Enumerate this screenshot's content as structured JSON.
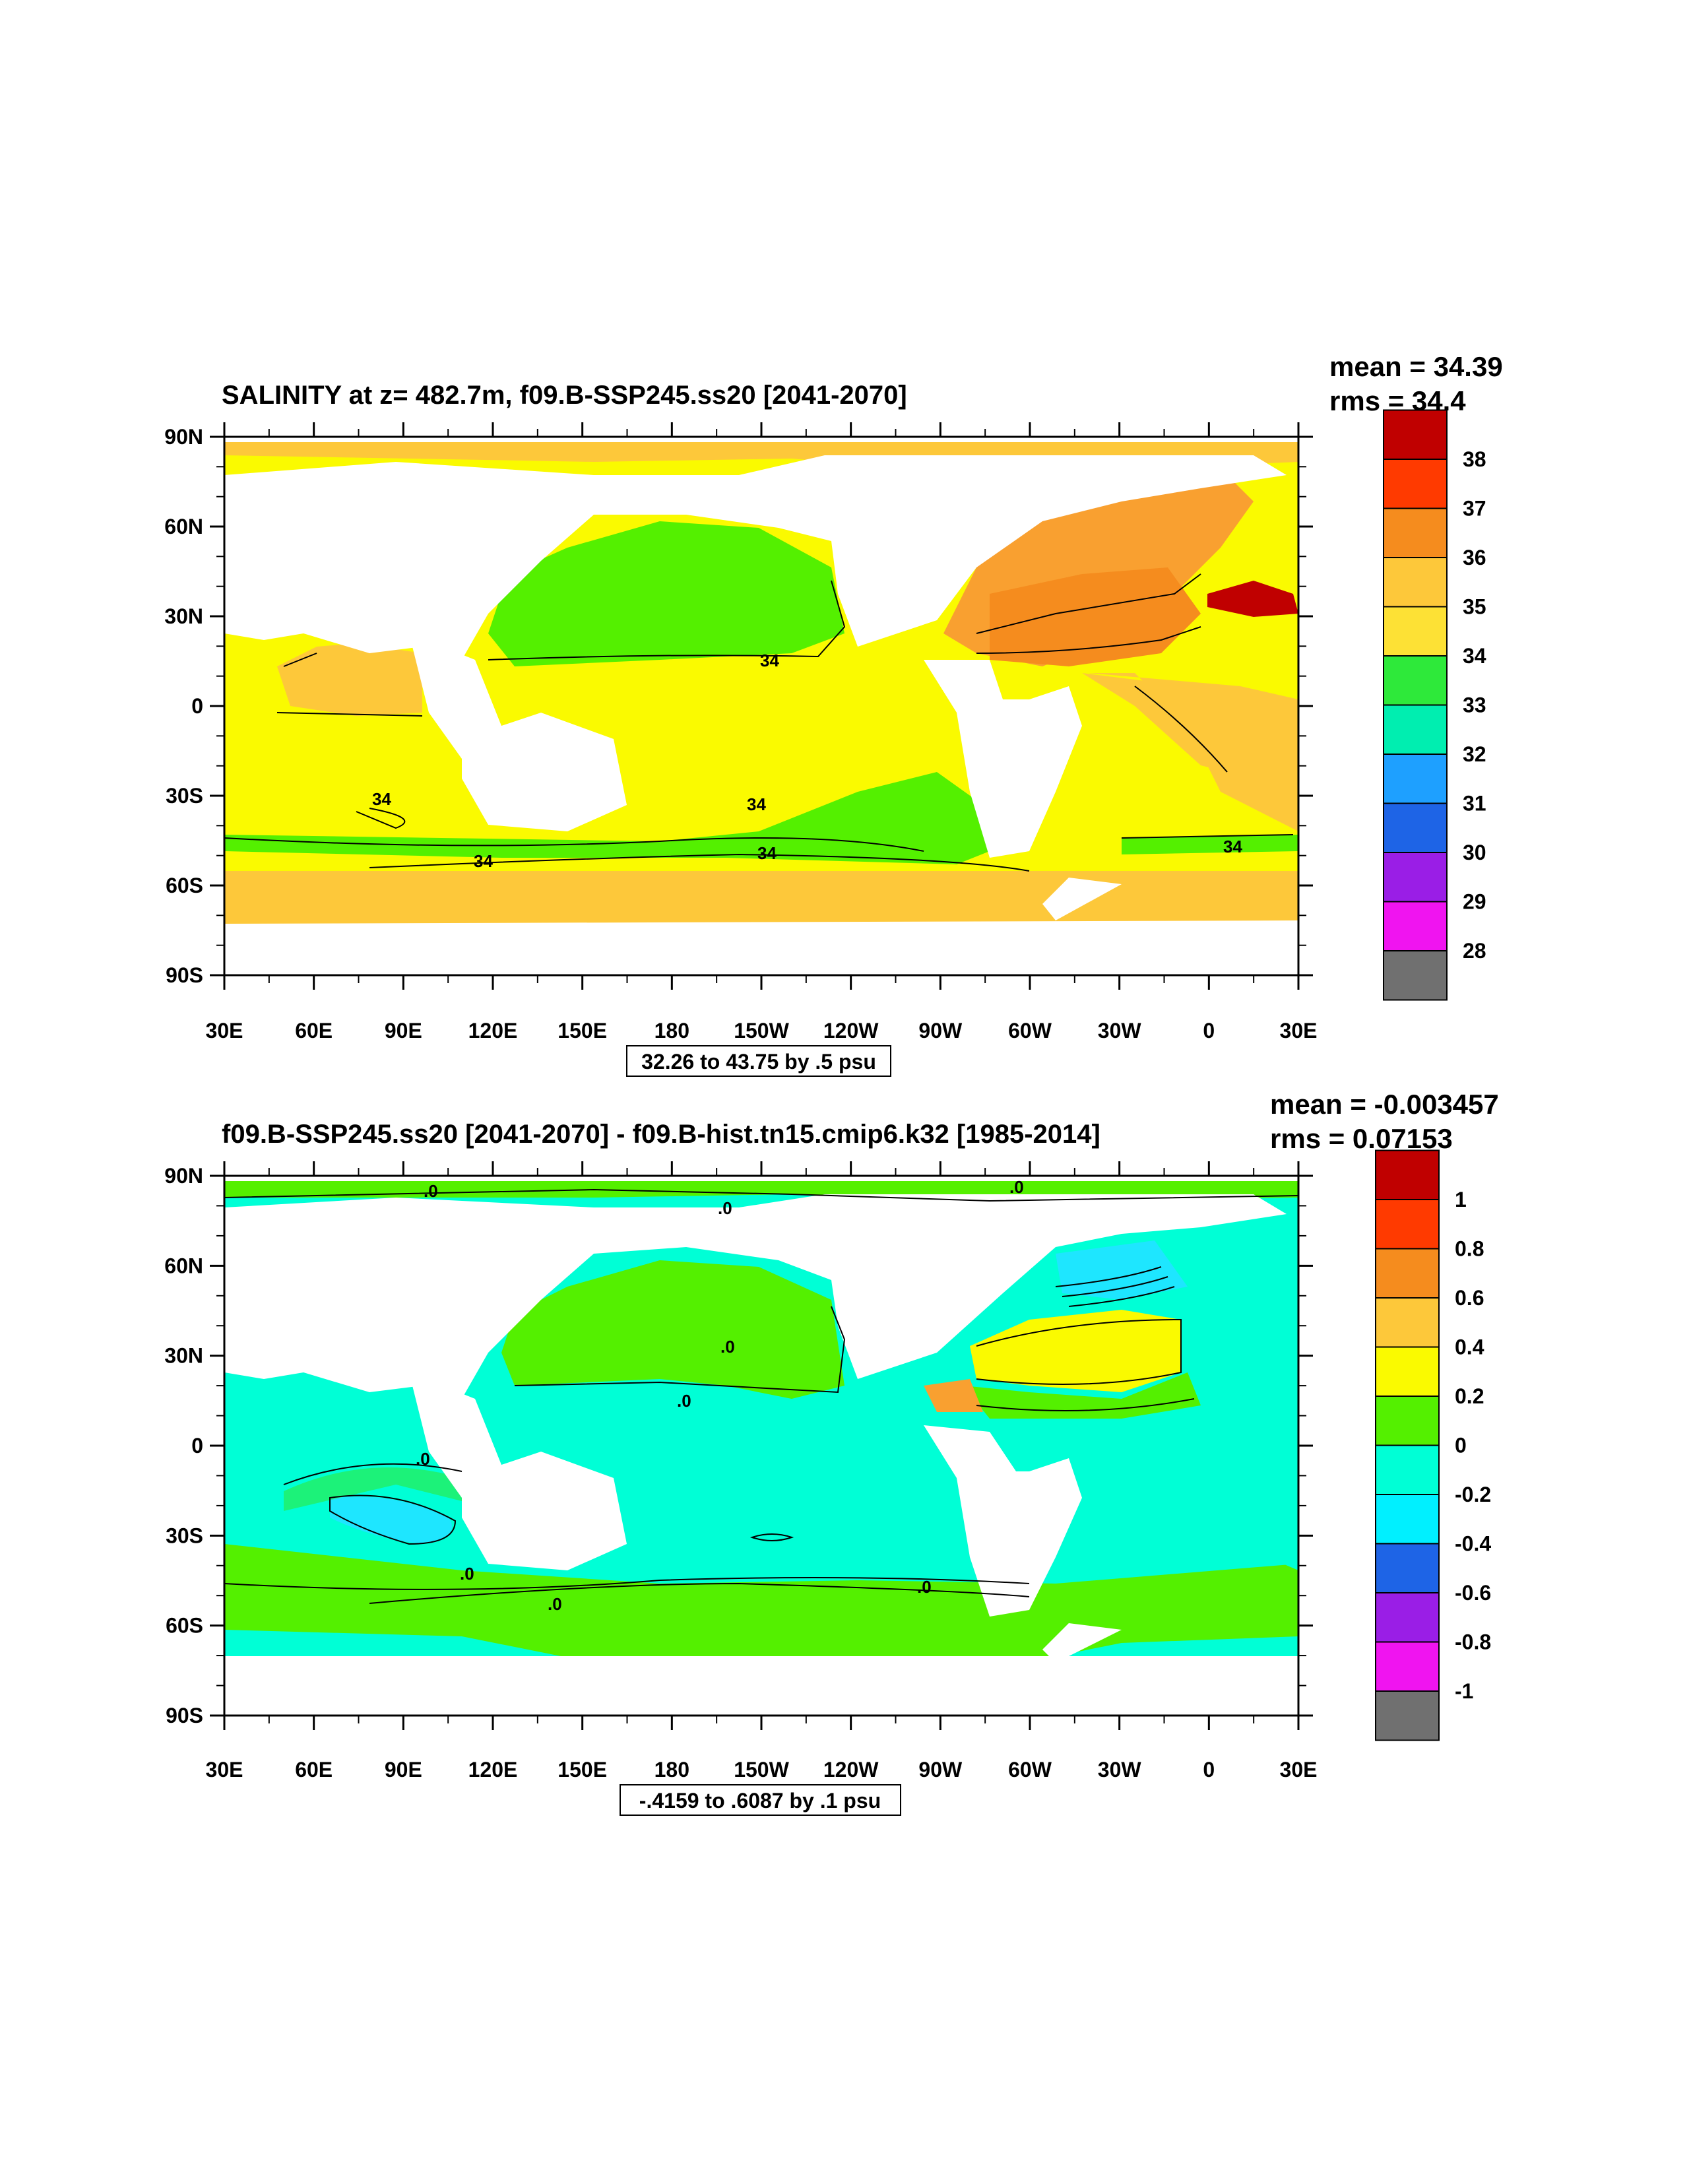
{
  "panels": [
    {
      "title": "SALINITY at z= 482.7m, f09.B-SSP245.ss20 [2041-2070]",
      "mean_text": "mean = 34.39",
      "rms_text": "rms = 34.4",
      "contour_info": "32.26 to 43.75 by .5 psu",
      "colorbar_labels": [
        "38",
        "37",
        "36",
        "35",
        "34",
        "33",
        "32",
        "31",
        "30",
        "29",
        "28"
      ],
      "colorbar_colors": [
        "#c00000",
        "#e60000",
        "#ff3a00",
        "#f58c1e",
        "#f9a030",
        "#fdc83a",
        "#fde135",
        "#fafa00",
        "#2ee93a",
        "#00eeb0",
        "#1ee6ff",
        "#1ea0ff",
        "#1e64e6",
        "#0000ff",
        "#9a1ee6",
        "#f014f0",
        "#cccccc",
        "#707070"
      ],
      "contour_labels": [
        "34",
        "34",
        "34",
        "34",
        "34",
        "34"
      ]
    },
    {
      "title": "f09.B-SSP245.ss20 [2041-2070] - f09.B-hist.tn15.cmip6.k32 [1985-2014]",
      "mean_text": "mean = -0.003457",
      "rms_text": "rms = 0.07153",
      "contour_info": "-.4159 to .6087 by .1 psu",
      "colorbar_labels": [
        "1",
        "0.8",
        "0.6",
        "0.4",
        "0.2",
        "0",
        "-0.2",
        "-0.4",
        "-0.6",
        "-0.8",
        "-1"
      ],
      "colorbar_colors": [
        "#c00000",
        "#e60000",
        "#ff3a00",
        "#f58c1e",
        "#f9a030",
        "#fdc83a",
        "#fde135",
        "#fafa00",
        "#54f000",
        "#2ee93a",
        "#00ffd6",
        "#00f0ff",
        "#1ee6ff",
        "#1e64e6",
        "#0000ff",
        "#9a1ee6",
        "#f014f0",
        "#cccccc",
        "#707070"
      ],
      "contour_labels": [
        ".0",
        ".0",
        ".0",
        ".0",
        ".0",
        ".0",
        ".0",
        ".0",
        ".0"
      ]
    }
  ],
  "axes": {
    "lat_labels": [
      "90N",
      "60N",
      "30N",
      "0",
      "30S",
      "60S",
      "90S"
    ],
    "lon_labels": [
      "30E",
      "60E",
      "90E",
      "120E",
      "150E",
      "180",
      "150W",
      "120W",
      "90W",
      "60W",
      "30W",
      "0",
      "30E"
    ]
  }
}
